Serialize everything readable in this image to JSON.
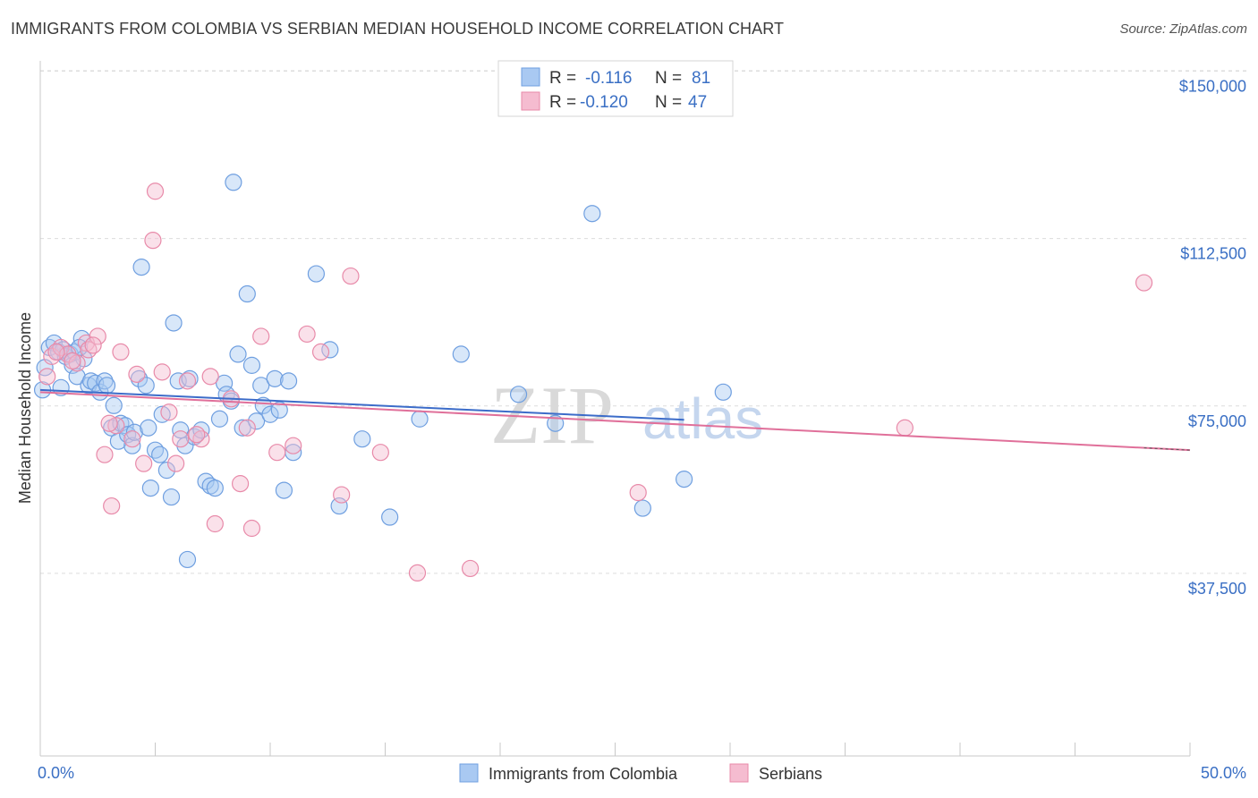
{
  "header": {
    "title": "IMMIGRANTS FROM COLOMBIA VS SERBIAN MEDIAN HOUSEHOLD INCOME CORRELATION CHART",
    "source": "Source: ZipAtlas.com"
  },
  "watermark": {
    "zip": "ZIP",
    "atlas": "atlas"
  },
  "legend": {
    "rows": [
      {
        "r_label": "R =",
        "r_value": "-0.116",
        "n_label": "N =",
        "n_value": "81",
        "color": "#a9c9f2"
      },
      {
        "r_label": "R =",
        "r_value": "-0.120",
        "n_label": "N =",
        "n_value": "47",
        "color": "#f5bcd0"
      }
    ]
  },
  "chart_data": {
    "type": "scatter",
    "ylabel": "Median Household Income",
    "xlim": [
      0,
      50
    ],
    "ylim": [
      0,
      150000
    ],
    "x_tick_labels": [
      "0.0%",
      "50.0%"
    ],
    "y_ticks": [
      {
        "value": 37500,
        "label": "$37,500"
      },
      {
        "value": 75000,
        "label": "$75,000"
      },
      {
        "value": 112500,
        "label": "$112,500"
      },
      {
        "value": 150000,
        "label": "$150,000"
      }
    ],
    "series": [
      {
        "name": "Immigrants from Colombia",
        "color": "#6f9fe0",
        "fill": "#a9c9f2",
        "trend": {
          "x0": 0,
          "y0": 82000,
          "x1": 28,
          "y1": 75300,
          "color": "#3c6cc9"
        },
        "points": [
          [
            0.1,
            82000
          ],
          [
            0.4,
            91500
          ],
          [
            0.6,
            92500
          ],
          [
            0.8,
            90500
          ],
          [
            0.9,
            82500
          ],
          [
            1.0,
            91000
          ],
          [
            1.1,
            89500
          ],
          [
            1.3,
            90000
          ],
          [
            1.4,
            87500
          ],
          [
            1.5,
            90500
          ],
          [
            1.6,
            85000
          ],
          [
            1.8,
            93500
          ],
          [
            1.9,
            89000
          ],
          [
            2.1,
            83000
          ],
          [
            2.2,
            84000
          ],
          [
            2.4,
            83500
          ],
          [
            2.6,
            81500
          ],
          [
            2.8,
            84000
          ],
          [
            2.9,
            83000
          ],
          [
            3.1,
            73500
          ],
          [
            3.2,
            78500
          ],
          [
            3.4,
            70500
          ],
          [
            3.5,
            74500
          ],
          [
            3.7,
            74000
          ],
          [
            3.8,
            72000
          ],
          [
            4.0,
            69500
          ],
          [
            4.1,
            72500
          ],
          [
            4.3,
            84500
          ],
          [
            4.4,
            109500
          ],
          [
            4.6,
            83000
          ],
          [
            4.7,
            73500
          ],
          [
            4.8,
            60000
          ],
          [
            5.0,
            68500
          ],
          [
            5.2,
            67500
          ],
          [
            5.3,
            76500
          ],
          [
            5.5,
            64000
          ],
          [
            5.7,
            58000
          ],
          [
            5.8,
            97000
          ],
          [
            6.0,
            84000
          ],
          [
            6.1,
            73000
          ],
          [
            6.3,
            69500
          ],
          [
            6.4,
            44000
          ],
          [
            6.5,
            84500
          ],
          [
            6.7,
            71500
          ],
          [
            7.0,
            73000
          ],
          [
            7.2,
            61500
          ],
          [
            7.4,
            60500
          ],
          [
            7.6,
            60000
          ],
          [
            7.8,
            75500
          ],
          [
            8.0,
            83500
          ],
          [
            8.1,
            81000
          ],
          [
            8.3,
            79500
          ],
          [
            8.4,
            128500
          ],
          [
            8.6,
            90000
          ],
          [
            8.8,
            73500
          ],
          [
            9.0,
            103500
          ],
          [
            9.2,
            87500
          ],
          [
            9.4,
            75000
          ],
          [
            9.6,
            83000
          ],
          [
            9.7,
            78500
          ],
          [
            10.0,
            76500
          ],
          [
            10.2,
            84500
          ],
          [
            10.4,
            77500
          ],
          [
            10.6,
            59500
          ],
          [
            10.8,
            84000
          ],
          [
            11.0,
            68000
          ],
          [
            12.0,
            108000
          ],
          [
            12.6,
            91000
          ],
          [
            13.0,
            56000
          ],
          [
            14.0,
            71000
          ],
          [
            15.2,
            53500
          ],
          [
            16.5,
            75500
          ],
          [
            18.3,
            90000
          ],
          [
            20.8,
            81000
          ],
          [
            22.4,
            74500
          ],
          [
            24.0,
            121500
          ],
          [
            26.2,
            55500
          ],
          [
            28.0,
            62000
          ],
          [
            29.7,
            81500
          ],
          [
            0.2,
            87000
          ],
          [
            1.7,
            91500
          ]
        ]
      },
      {
        "name": "Serbians",
        "color": "#e88aa9",
        "fill": "#f5bcd0",
        "trend": {
          "x0": 0,
          "y0": 81500,
          "x1": 50,
          "y1": 68500,
          "color": "#e0709a"
        },
        "points": [
          [
            0.3,
            85000
          ],
          [
            0.5,
            89500
          ],
          [
            0.9,
            91500
          ],
          [
            1.2,
            90000
          ],
          [
            1.6,
            88000
          ],
          [
            2.0,
            92500
          ],
          [
            2.1,
            91000
          ],
          [
            2.5,
            94000
          ],
          [
            2.8,
            67500
          ],
          [
            3.1,
            56000
          ],
          [
            3.3,
            74000
          ],
          [
            3.5,
            90500
          ],
          [
            4.0,
            71000
          ],
          [
            4.2,
            85500
          ],
          [
            4.5,
            65500
          ],
          [
            4.9,
            115500
          ],
          [
            5.0,
            126500
          ],
          [
            5.3,
            86000
          ],
          [
            5.6,
            77000
          ],
          [
            5.9,
            65500
          ],
          [
            6.1,
            71000
          ],
          [
            6.4,
            84000
          ],
          [
            7.0,
            71000
          ],
          [
            7.4,
            85000
          ],
          [
            7.6,
            52000
          ],
          [
            8.3,
            80000
          ],
          [
            8.7,
            61000
          ],
          [
            9.0,
            73500
          ],
          [
            9.2,
            51000
          ],
          [
            9.6,
            94000
          ],
          [
            10.3,
            68000
          ],
          [
            11.0,
            69500
          ],
          [
            11.6,
            94500
          ],
          [
            12.2,
            90500
          ],
          [
            13.1,
            58500
          ],
          [
            13.5,
            107500
          ],
          [
            14.8,
            68000
          ],
          [
            16.4,
            41000
          ],
          [
            18.7,
            42000
          ],
          [
            26.0,
            59000
          ],
          [
            37.6,
            73500
          ],
          [
            48.0,
            106000
          ],
          [
            0.7,
            90500
          ],
          [
            1.4,
            88500
          ],
          [
            2.3,
            92000
          ],
          [
            3.0,
            74500
          ],
          [
            6.8,
            72000
          ]
        ]
      }
    ]
  },
  "bottom_legend": [
    {
      "label": "Immigrants from Colombia",
      "color": "#a9c9f2",
      "border": "#6f9fe0"
    },
    {
      "label": "Serbians",
      "color": "#f5bcd0",
      "border": "#e88aa9"
    }
  ]
}
